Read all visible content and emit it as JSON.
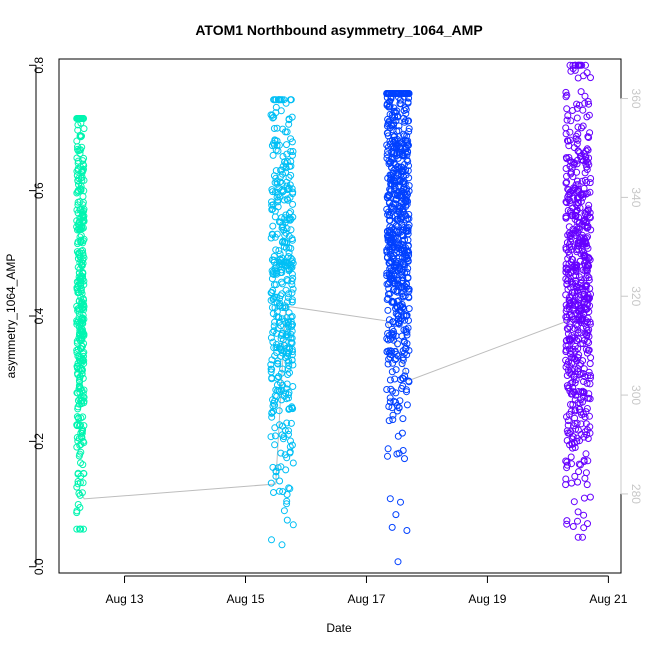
{
  "chart_data": {
    "type": "scatter",
    "title": "ATOM1 Northbound asymmetry_1064_AMP",
    "xlabel": "Date",
    "ylabel": "asymmetry_1064_AMP",
    "x_range": [
      "2016-08-11T22:00",
      "2016-08-21T05:00"
    ],
    "ylim": [
      -0.01,
      0.81
    ],
    "y_ticks": [
      "0.0",
      "0.2",
      "0.4",
      "0.6",
      "0.8"
    ],
    "x_ticks": [
      {
        "date": "2016-08-13",
        "label": "Aug 13"
      },
      {
        "date": "2016-08-15",
        "label": "Aug 15"
      },
      {
        "date": "2016-08-17",
        "label": "Aug 17"
      },
      {
        "date": "2016-08-19",
        "label": "Aug 19"
      },
      {
        "date": "2016-08-21",
        "label": "Aug 21"
      }
    ],
    "secondary_y": {
      "ylim": [
        264,
        368
      ],
      "ticks": [
        "280",
        "300",
        "320",
        "340",
        "360"
      ],
      "color": "#c8c8c8"
    },
    "series": [
      {
        "color": "#00f5b0",
        "x_start": "2016-08-12T05:00",
        "x_end": "2016-08-12T08:00",
        "y_min": 0.06,
        "y_max": 0.715,
        "y_center": 0.45,
        "y_spread": 0.17
      },
      {
        "color": "#00bff5",
        "x_start": "2016-08-15T10:00",
        "x_end": "2016-08-15T19:00",
        "y_min": 0.035,
        "y_max": 0.745,
        "y_center": 0.45,
        "y_spread": 0.16
      },
      {
        "color": "#0040ff",
        "x_start": "2016-08-17T08:00",
        "x_end": "2016-08-17T17:00",
        "y_min": 0.008,
        "y_max": 0.755,
        "y_center": 0.56,
        "y_spread": 0.15
      },
      {
        "color": "#6600ff",
        "x_start": "2016-08-20T07:00",
        "x_end": "2016-08-20T17:00",
        "y_min": 0.047,
        "y_max": 0.8,
        "y_center": 0.46,
        "y_spread": 0.16
      }
    ],
    "grey_line": [
      {
        "date": "2016-08-12T06:00",
        "value": 281
      },
      {
        "date": "2016-08-12T08:00",
        "value": 279
      },
      {
        "date": "2016-08-15T12:00",
        "value": 282
      },
      {
        "date": "2016-08-15T16:00",
        "value": 318
      },
      {
        "date": "2016-08-17T08:00",
        "value": 315
      },
      {
        "date": "2016-08-17T17:00",
        "value": 303
      },
      {
        "date": "2016-08-20T13:00",
        "value": 316
      }
    ]
  }
}
